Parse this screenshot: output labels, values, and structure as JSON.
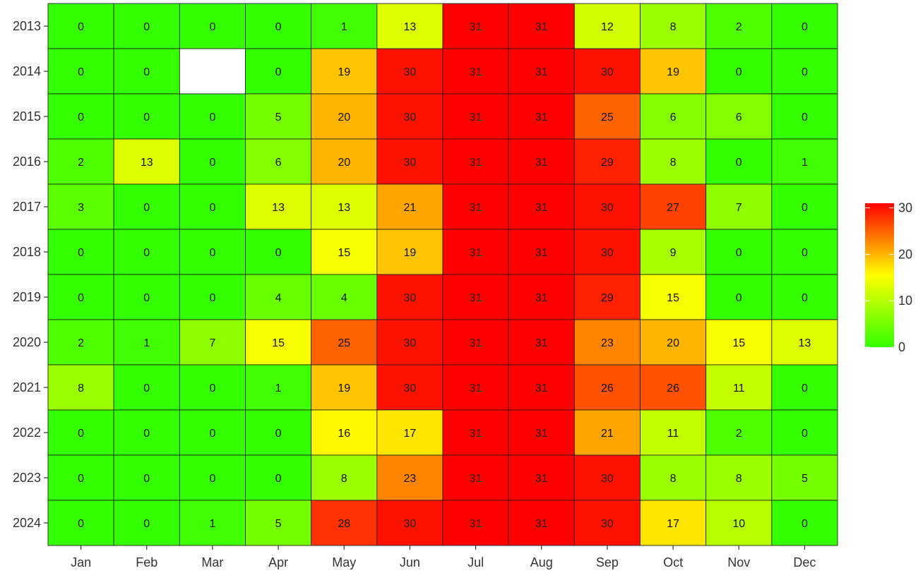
{
  "chart_data": {
    "type": "heatmap",
    "title": "",
    "xlabel": "",
    "ylabel": "",
    "x_categories": [
      "Jan",
      "Feb",
      "Mar",
      "Apr",
      "May",
      "Jun",
      "Jul",
      "Aug",
      "Sep",
      "Oct",
      "Nov",
      "Dec"
    ],
    "y_categories": [
      "2013",
      "2014",
      "2015",
      "2016",
      "2017",
      "2018",
      "2019",
      "2020",
      "2021",
      "2022",
      "2023",
      "2024"
    ],
    "values": [
      [
        0,
        0,
        0,
        0,
        1,
        13,
        31,
        31,
        12,
        8,
        2,
        0
      ],
      [
        0,
        0,
        null,
        0,
        19,
        30,
        31,
        31,
        30,
        19,
        0,
        0
      ],
      [
        0,
        0,
        0,
        5,
        20,
        30,
        31,
        31,
        25,
        6,
        6,
        0
      ],
      [
        2,
        13,
        0,
        6,
        20,
        30,
        31,
        31,
        29,
        8,
        0,
        1
      ],
      [
        3,
        0,
        0,
        13,
        13,
        21,
        31,
        31,
        30,
        27,
        7,
        0
      ],
      [
        0,
        0,
        0,
        0,
        15,
        19,
        31,
        31,
        30,
        9,
        0,
        0
      ],
      [
        0,
        0,
        0,
        4,
        4,
        30,
        31,
        31,
        29,
        15,
        0,
        0
      ],
      [
        2,
        1,
        7,
        15,
        25,
        30,
        31,
        31,
        23,
        20,
        15,
        13
      ],
      [
        8,
        0,
        0,
        1,
        19,
        30,
        31,
        31,
        26,
        26,
        11,
        0
      ],
      [
        0,
        0,
        0,
        0,
        16,
        17,
        31,
        31,
        21,
        11,
        2,
        0
      ],
      [
        0,
        0,
        0,
        0,
        8,
        23,
        31,
        31,
        30,
        8,
        8,
        5
      ],
      [
        0,
        0,
        1,
        5,
        28,
        30,
        31,
        31,
        30,
        17,
        10,
        0
      ]
    ],
    "color_scale": {
      "low": "#33ff00",
      "mid": "#ffff00",
      "high": "#ff0000",
      "range": [
        0,
        31
      ],
      "missing": "#ffffff"
    },
    "legend": {
      "position": "right",
      "ticks": [
        0,
        10,
        20,
        30
      ]
    },
    "grid": false
  }
}
